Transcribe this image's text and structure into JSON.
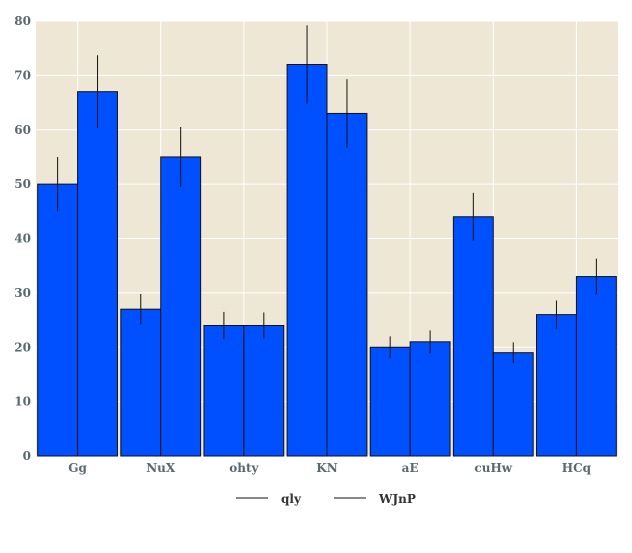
{
  "chart_data": {
    "type": "bar",
    "categories": [
      "Gg",
      "NuX",
      "ohty",
      "KN",
      "aE",
      "cuHw",
      "HCq"
    ],
    "series": [
      {
        "name": "qly",
        "values": [
          50,
          27,
          24,
          72,
          20,
          44,
          26
        ],
        "errors": [
          5.0,
          2.8,
          2.5,
          7.2,
          2.0,
          4.4,
          2.6
        ]
      },
      {
        "name": "WJnP",
        "values": [
          67,
          55,
          24,
          63,
          21,
          19,
          33
        ],
        "errors": [
          6.7,
          5.5,
          2.4,
          6.3,
          2.1,
          1.9,
          3.3
        ]
      }
    ],
    "ylim": [
      0,
      80
    ],
    "yticks": [
      0,
      10,
      20,
      30,
      40,
      50,
      60,
      70,
      80
    ],
    "grid": true,
    "legend_position": "bottom-center",
    "colors": {
      "bar": "#0050ff",
      "bar_edge": "#111111",
      "plot_background": "#efe7d5",
      "grid": "#ffffff",
      "error_bar": "#111111"
    }
  }
}
